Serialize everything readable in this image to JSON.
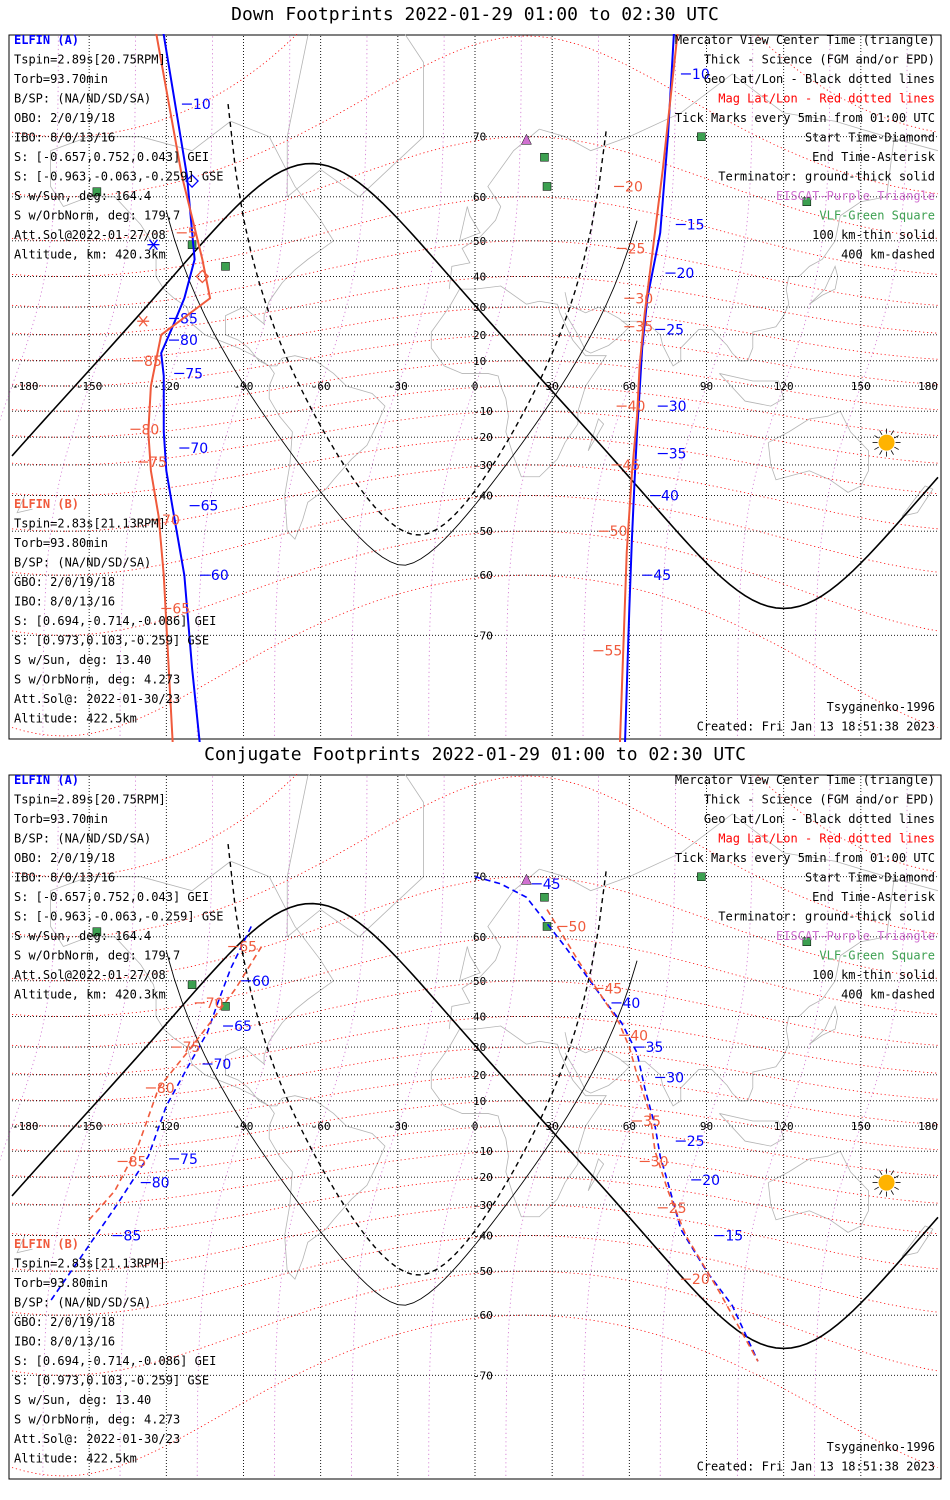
{
  "colors": {
    "elfin_a": "#0000ff",
    "elfin_b": "#f05a3c",
    "mag_grid": "#ff0000",
    "geo_grid": "#000000",
    "eiscat": "#d070d0",
    "vlf": "#3ca050",
    "sun": "#ffb300",
    "coast": "#b4b4b4"
  },
  "panels": [
    {
      "title": "Down Footprints 2022-01-29 01:00 to 02:30 UTC",
      "kind": "down",
      "legend": [
        {
          "text": "Mercator View Center Time (triangle)",
          "color": "#000000"
        },
        {
          "text": "Thick - Science (FGM and/or EPD)",
          "color": "#000000"
        },
        {
          "text": "Geo Lat/Lon - Black dotted lines",
          "color": "#000000"
        },
        {
          "text": "Mag Lat/Lon - Red dotted lines",
          "color": "#ff0000"
        },
        {
          "text": "Tick Marks every 5min from 01:00 UTC",
          "color": "#000000"
        },
        {
          "text": "Start Time-Diamond",
          "color": "#000000"
        },
        {
          "text": "End Time-Asterisk",
          "color": "#000000"
        },
        {
          "text": "Terminator: ground-thick solid",
          "color": "#000000"
        },
        {
          "text": "EISCAT-Purple Triangle",
          "color": "#d070d0"
        },
        {
          "text": "VLF-Green Square",
          "color": "#3ca050"
        },
        {
          "text": "100 km-thin solid",
          "color": "#000000"
        },
        {
          "text": "400 km-dashed",
          "color": "#000000"
        }
      ],
      "info_a": {
        "name": "ELFIN (A)",
        "lines": [
          "Tspin=2.89s[20.75RPM]",
          "Torb=93.70min",
          "B/SP: (NA/ND/SD/SA)",
          "OBO: 2/0/19/18",
          "IBO: 8/0/13/16",
          "S: [-0.657,0.752,0.043] GEI",
          "S: [-0.963,-0.063,-0.259] GSE",
          "S w/Sun, deg: 164.4",
          "S w/OrbNorm, deg: 179.7",
          "Att.Sol@2022-01-27/08",
          "Altitude, km: 420.3km"
        ]
      },
      "info_b": {
        "name": "ELFIN (B)",
        "lines": [
          "Tspin=2.83s[21.13RPM]",
          "Torb=93.80min",
          "B/SP: (NA/ND/SD/SA)",
          "GBO: 2/0/19/18",
          "IBO: 8/0/13/16",
          "S: [0.694,-0.714,-0.086] GEI",
          "S: [0.973,0.103,-0.259] GSE",
          "S w/Sun, deg: 13.40",
          "S w/OrbNorm, deg: 4.273",
          "Att.Sol@: 2022-01-30/23",
          "Altitude: 422.5km"
        ]
      },
      "footer_right": [
        "Tsyganenko-1996",
        "Created: Fri Jan 13 18:51:38 2023"
      ]
    },
    {
      "title": "Conjugate Footprints 2022-01-29 01:00 to 02:30 UTC",
      "kind": "conj",
      "legend": [
        {
          "text": "Mercator View Center Time (triangle)",
          "color": "#000000"
        },
        {
          "text": "Thick - Science (FGM and/or EPD)",
          "color": "#000000"
        },
        {
          "text": "Geo Lat/Lon - Black dotted lines",
          "color": "#000000"
        },
        {
          "text": "Mag Lat/Lon - Red dotted lines",
          "color": "#ff0000"
        },
        {
          "text": "Tick Marks every 5min from 01:00 UTC",
          "color": "#000000"
        },
        {
          "text": "Start Time-Diamond",
          "color": "#000000"
        },
        {
          "text": "End Time-Asterisk",
          "color": "#000000"
        },
        {
          "text": "Terminator: ground-thick solid",
          "color": "#000000"
        },
        {
          "text": "EISCAT-Purple Triangle",
          "color": "#d070d0"
        },
        {
          "text": "VLF-Green Square",
          "color": "#3ca050"
        },
        {
          "text": "100 km-thin solid",
          "color": "#000000"
        },
        {
          "text": "400 km-dashed",
          "color": "#000000"
        }
      ],
      "info_a": {
        "name": "ELFIN (A)",
        "lines": [
          "Tspin=2.89s[20.75RPM]",
          "Torb=93.70min",
          "B/SP: (NA/ND/SD/SA)",
          "OBO: 2/0/19/18",
          "IBO: 8/0/13/16",
          "S: [-0.657,0.752,0.043] GEI",
          "S: [-0.963,-0.063,-0.259] GSE",
          "S w/Sun, deg: 164.4",
          "S w/OrbNorm, deg: 179.7",
          "Att.Sol@2022-01-27/08",
          "Altitude, km: 420.3km"
        ]
      },
      "info_b": {
        "name": "ELFIN (B)",
        "lines": [
          "Tspin=2.83s[21.13RPM]",
          "Torb=93.80min",
          "B/SP: (NA/ND/SD/SA)",
          "GBO: 2/0/19/18",
          "IBO: 8/0/13/16",
          "S: [0.694,-0.714,-0.086] GEI",
          "S: [0.973,0.103,-0.259] GSE",
          "S w/Sun, deg: 13.40",
          "S w/OrbNorm, deg: 4.273",
          "Att.Sol@: 2022-01-30/23",
          "Altitude: 422.5km"
        ]
      },
      "footer_right": [
        "Tsyganenko-1996",
        "Created: Fri Jan 13 18:51:38 2023"
      ]
    }
  ],
  "chart_data": [
    {
      "type": "scatter",
      "title": "Down Footprints 2022-01-29 01:00 to 02:30 UTC",
      "xlim": [
        -180,
        180
      ],
      "ylim": [
        -80,
        80
      ],
      "projection": "mercator",
      "lon_ticks": [
        -180,
        -150,
        -120,
        -90,
        -60,
        -30,
        0,
        30,
        60,
        90,
        120,
        150,
        180
      ],
      "lat_ticks": [
        -70,
        -60,
        -50,
        -40,
        -30,
        -20,
        -10,
        0,
        10,
        20,
        30,
        40,
        50,
        60,
        70
      ],
      "series": [
        {
          "name": "ELFIN (A)",
          "lon": [
            -123,
            -112,
            -109,
            -113,
            -118,
            -122,
            -121,
            -121,
            -120,
            -117,
            -113,
            -110,
            -106
          ],
          "lat": [
            82,
            64,
            45,
            33,
            22,
            13,
            4,
            -18,
            -32,
            -46,
            -60,
            -74,
            -82
          ],
          "tick_labels": [
            {
              "label": "10",
              "lon": -112,
              "lat": 74
            },
            {
              "label": "85",
              "lon": -117,
              "lat": 26
            },
            {
              "label": "80",
              "lon": -117,
              "lat": 18
            },
            {
              "label": "75",
              "lon": -115,
              "lat": 5
            },
            {
              "label": "70",
              "lon": -113,
              "lat": -24
            },
            {
              "label": "65",
              "lon": -109,
              "lat": -43
            },
            {
              "label": "60",
              "lon": -105,
              "lat": -60
            }
          ],
          "start": {
            "lon": -110,
            "lat": 63
          },
          "end": {
            "lon": -125,
            "lat": 49
          }
        },
        {
          "name": "ELFIN (B)",
          "lon": [
            -126,
            -114,
            -106,
            -103,
            -122,
            -126,
            -127,
            -126,
            -123,
            -121,
            -117
          ],
          "lat": [
            82,
            64,
            45,
            33,
            20,
            0,
            -18,
            -32,
            -46,
            -60,
            -82
          ],
          "tick_labels": [
            {
              "label": "5",
              "lon": -114,
              "lat": 52
            },
            {
              "label": "85",
              "lon": -131,
              "lat": 10
            },
            {
              "label": "80",
              "lon": -132,
              "lat": -17
            },
            {
              "label": "75",
              "lon": -129,
              "lat": -29
            },
            {
              "label": "70",
              "lon": -124,
              "lat": -47
            },
            {
              "label": "65",
              "lon": -120,
              "lat": -66
            }
          ],
          "start": {
            "lon": -106,
            "lat": 40
          },
          "end": {
            "lon": -129,
            "lat": 25
          }
        },
        {
          "name": "ELFIN (A) east",
          "lon": [
            78,
            75,
            72,
            67,
            65,
            64,
            63,
            62,
            61,
            60,
            58
          ],
          "lat": [
            82,
            70,
            52,
            33,
            15,
            -2,
            -18,
            -36,
            -52,
            -66,
            -82
          ],
          "tick_labels": [
            {
              "label": "10",
              "lon": 82,
              "lat": 77
            },
            {
              "label": "15",
              "lon": 80,
              "lat": 54
            },
            {
              "label": "20",
              "lon": 76,
              "lat": 41
            },
            {
              "label": "25",
              "lon": 72,
              "lat": 22
            },
            {
              "label": "30",
              "lon": 73,
              "lat": -8
            },
            {
              "label": "35",
              "lon": 73,
              "lat": -26
            },
            {
              "label": "40",
              "lon": 70,
              "lat": -40
            },
            {
              "label": "45",
              "lon": 67,
              "lat": -60
            }
          ]
        },
        {
          "name": "ELFIN (B) east",
          "lon": [
            80,
            73,
            69,
            66,
            64,
            63,
            61,
            59,
            56
          ],
          "lat": [
            82,
            65,
            47,
            28,
            8,
            -12,
            -33,
            -55,
            -82
          ],
          "tick_labels": [
            {
              "label": "20",
              "lon": 56,
              "lat": 62
            },
            {
              "label": "25",
              "lon": 57,
              "lat": 48
            },
            {
              "label": "30",
              "lon": 60,
              "lat": 33
            },
            {
              "label": "35",
              "lon": 60,
              "lat": 23
            },
            {
              "label": "40",
              "lon": 57,
              "lat": -8
            },
            {
              "label": "45",
              "lon": 55,
              "lat": -30
            },
            {
              "label": "50",
              "lon": 50,
              "lat": -50
            },
            {
              "label": "55",
              "lon": 48,
              "lat": -72
            }
          ]
        }
      ],
      "sun": {
        "lon": 160,
        "lat": -22
      }
    },
    {
      "type": "scatter",
      "title": "Conjugate Footprints 2022-01-29 01:00 to 02:30 UTC",
      "xlim": [
        -180,
        180
      ],
      "ylim": [
        -80,
        80
      ],
      "projection": "mercator",
      "lon_ticks": [
        -180,
        -150,
        -120,
        -90,
        -60,
        -30,
        0,
        30,
        60,
        90,
        120,
        150,
        180
      ],
      "lat_ticks": [
        -70,
        -60,
        -50,
        -40,
        -30,
        -20,
        -10,
        0,
        10,
        20,
        30,
        40,
        50,
        60,
        70
      ],
      "series": [
        {
          "name": "ELFIN (A) west",
          "lon": [
            -87,
            -95,
            -100,
            -104,
            -111,
            -120,
            -127,
            -140,
            -152,
            -165
          ],
          "lat": [
            62,
            53,
            44,
            35,
            24,
            8,
            -12,
            -31,
            -45,
            -57
          ],
          "tick_labels": [
            {
              "label": "60",
              "lon": -89,
              "lat": 50
            },
            {
              "label": "65",
              "lon": -96,
              "lat": 37
            },
            {
              "label": "70",
              "lon": -104,
              "lat": 24
            },
            {
              "label": "75",
              "lon": -117,
              "lat": -13
            },
            {
              "label": "80",
              "lon": -128,
              "lat": -22
            },
            {
              "label": "85",
              "lon": -139,
              "lat": -40
            }
          ]
        },
        {
          "name": "ELFIN (B) west",
          "lon": [
            -83,
            -93,
            -103,
            -112,
            -123,
            -131,
            -140,
            -150
          ],
          "lat": [
            58,
            48,
            38,
            28,
            15,
            -8,
            -25,
            -35
          ],
          "tick_labels": [
            {
              "label": "65",
              "lon": -94,
              "lat": 58
            },
            {
              "label": "70",
              "lon": -107,
              "lat": 44
            },
            {
              "label": "75",
              "lon": -116,
              "lat": 30
            },
            {
              "label": "80",
              "lon": -126,
              "lat": 15
            },
            {
              "label": "85",
              "lon": -137,
              "lat": -14
            }
          ]
        },
        {
          "name": "ELFIN (A) east",
          "lon": [
            0,
            10,
            20,
            35,
            50,
            57,
            63,
            66,
            70,
            72,
            75,
            80,
            90,
            100,
            110
          ],
          "lat": [
            70,
            69,
            67,
            58,
            45,
            38,
            28,
            15,
            0,
            -12,
            -22,
            -38,
            -50,
            -58,
            -68
          ],
          "tick_labels": [
            {
              "label": "45",
              "lon": 24,
              "lat": 69
            },
            {
              "label": "40",
              "lon": 55,
              "lat": 44
            },
            {
              "label": "35",
              "lon": 64,
              "lat": 30
            },
            {
              "label": "30",
              "lon": 72,
              "lat": 19
            },
            {
              "label": "25",
              "lon": 80,
              "lat": -6
            },
            {
              "label": "20",
              "lon": 86,
              "lat": -21
            },
            {
              "label": "15",
              "lon": 95,
              "lat": -40
            }
          ]
        },
        {
          "name": "ELFIN (B) east",
          "lon": [
            28,
            40,
            50,
            56,
            60,
            63,
            68,
            70,
            75,
            82,
            95,
            110
          ],
          "lat": [
            65,
            55,
            45,
            38,
            30,
            20,
            5,
            -10,
            -25,
            -40,
            -55,
            -68
          ],
          "tick_labels": [
            {
              "label": "50",
              "lon": 34,
              "lat": 62
            },
            {
              "label": "45",
              "lon": 48,
              "lat": 48
            },
            {
              "label": "40",
              "lon": 58,
              "lat": 34
            },
            {
              "label": "35",
              "lon": 63,
              "lat": 2
            },
            {
              "label": "30",
              "lon": 66,
              "lat": -14
            },
            {
              "label": "25",
              "lon": 73,
              "lat": -31
            },
            {
              "label": "20",
              "lon": 82,
              "lat": -52
            }
          ]
        }
      ],
      "sun": {
        "lon": 160,
        "lat": -22
      }
    }
  ]
}
